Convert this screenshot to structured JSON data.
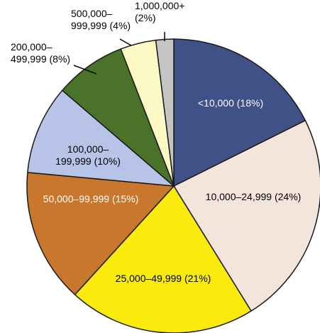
{
  "chart_data": {
    "type": "pie",
    "title": "",
    "slices": [
      {
        "label": "<10,000 (18%)",
        "value": 18,
        "color": "#3f5186",
        "text_color": "#ffffff"
      },
      {
        "label": "10,000–24,999 (24%)",
        "value": 24,
        "color": "#f3e4dc",
        "text_color": "#000000"
      },
      {
        "label": "25,000–49,999 (21%)",
        "value": 21,
        "color": "#faea0e",
        "text_color": "#000000"
      },
      {
        "label": "50,000–99,999 (15%)",
        "value": 15,
        "color": "#c9772c",
        "text_color": "#ffffff"
      },
      {
        "label_lines": [
          "100,000–",
          "199,999 (10%)"
        ],
        "value": 10,
        "color": "#b7c3e7",
        "text_color": "#000000"
      },
      {
        "label_lines": [
          "200,000–",
          "499,999 (8%)"
        ],
        "value": 8,
        "color": "#4a7228",
        "text_color": "#000000"
      },
      {
        "label_lines": [
          "500,000–",
          "999,999 (4%)"
        ],
        "value": 4,
        "color": "#fdf9c4",
        "text_color": "#000000"
      },
      {
        "label_lines": [
          "1,000,000+",
          "(2%)"
        ],
        "value": 2,
        "color": "#c4c4c4",
        "text_color": "#000000"
      }
    ],
    "start": "12 o'clock",
    "direction": "clockwise",
    "legend": "none"
  }
}
